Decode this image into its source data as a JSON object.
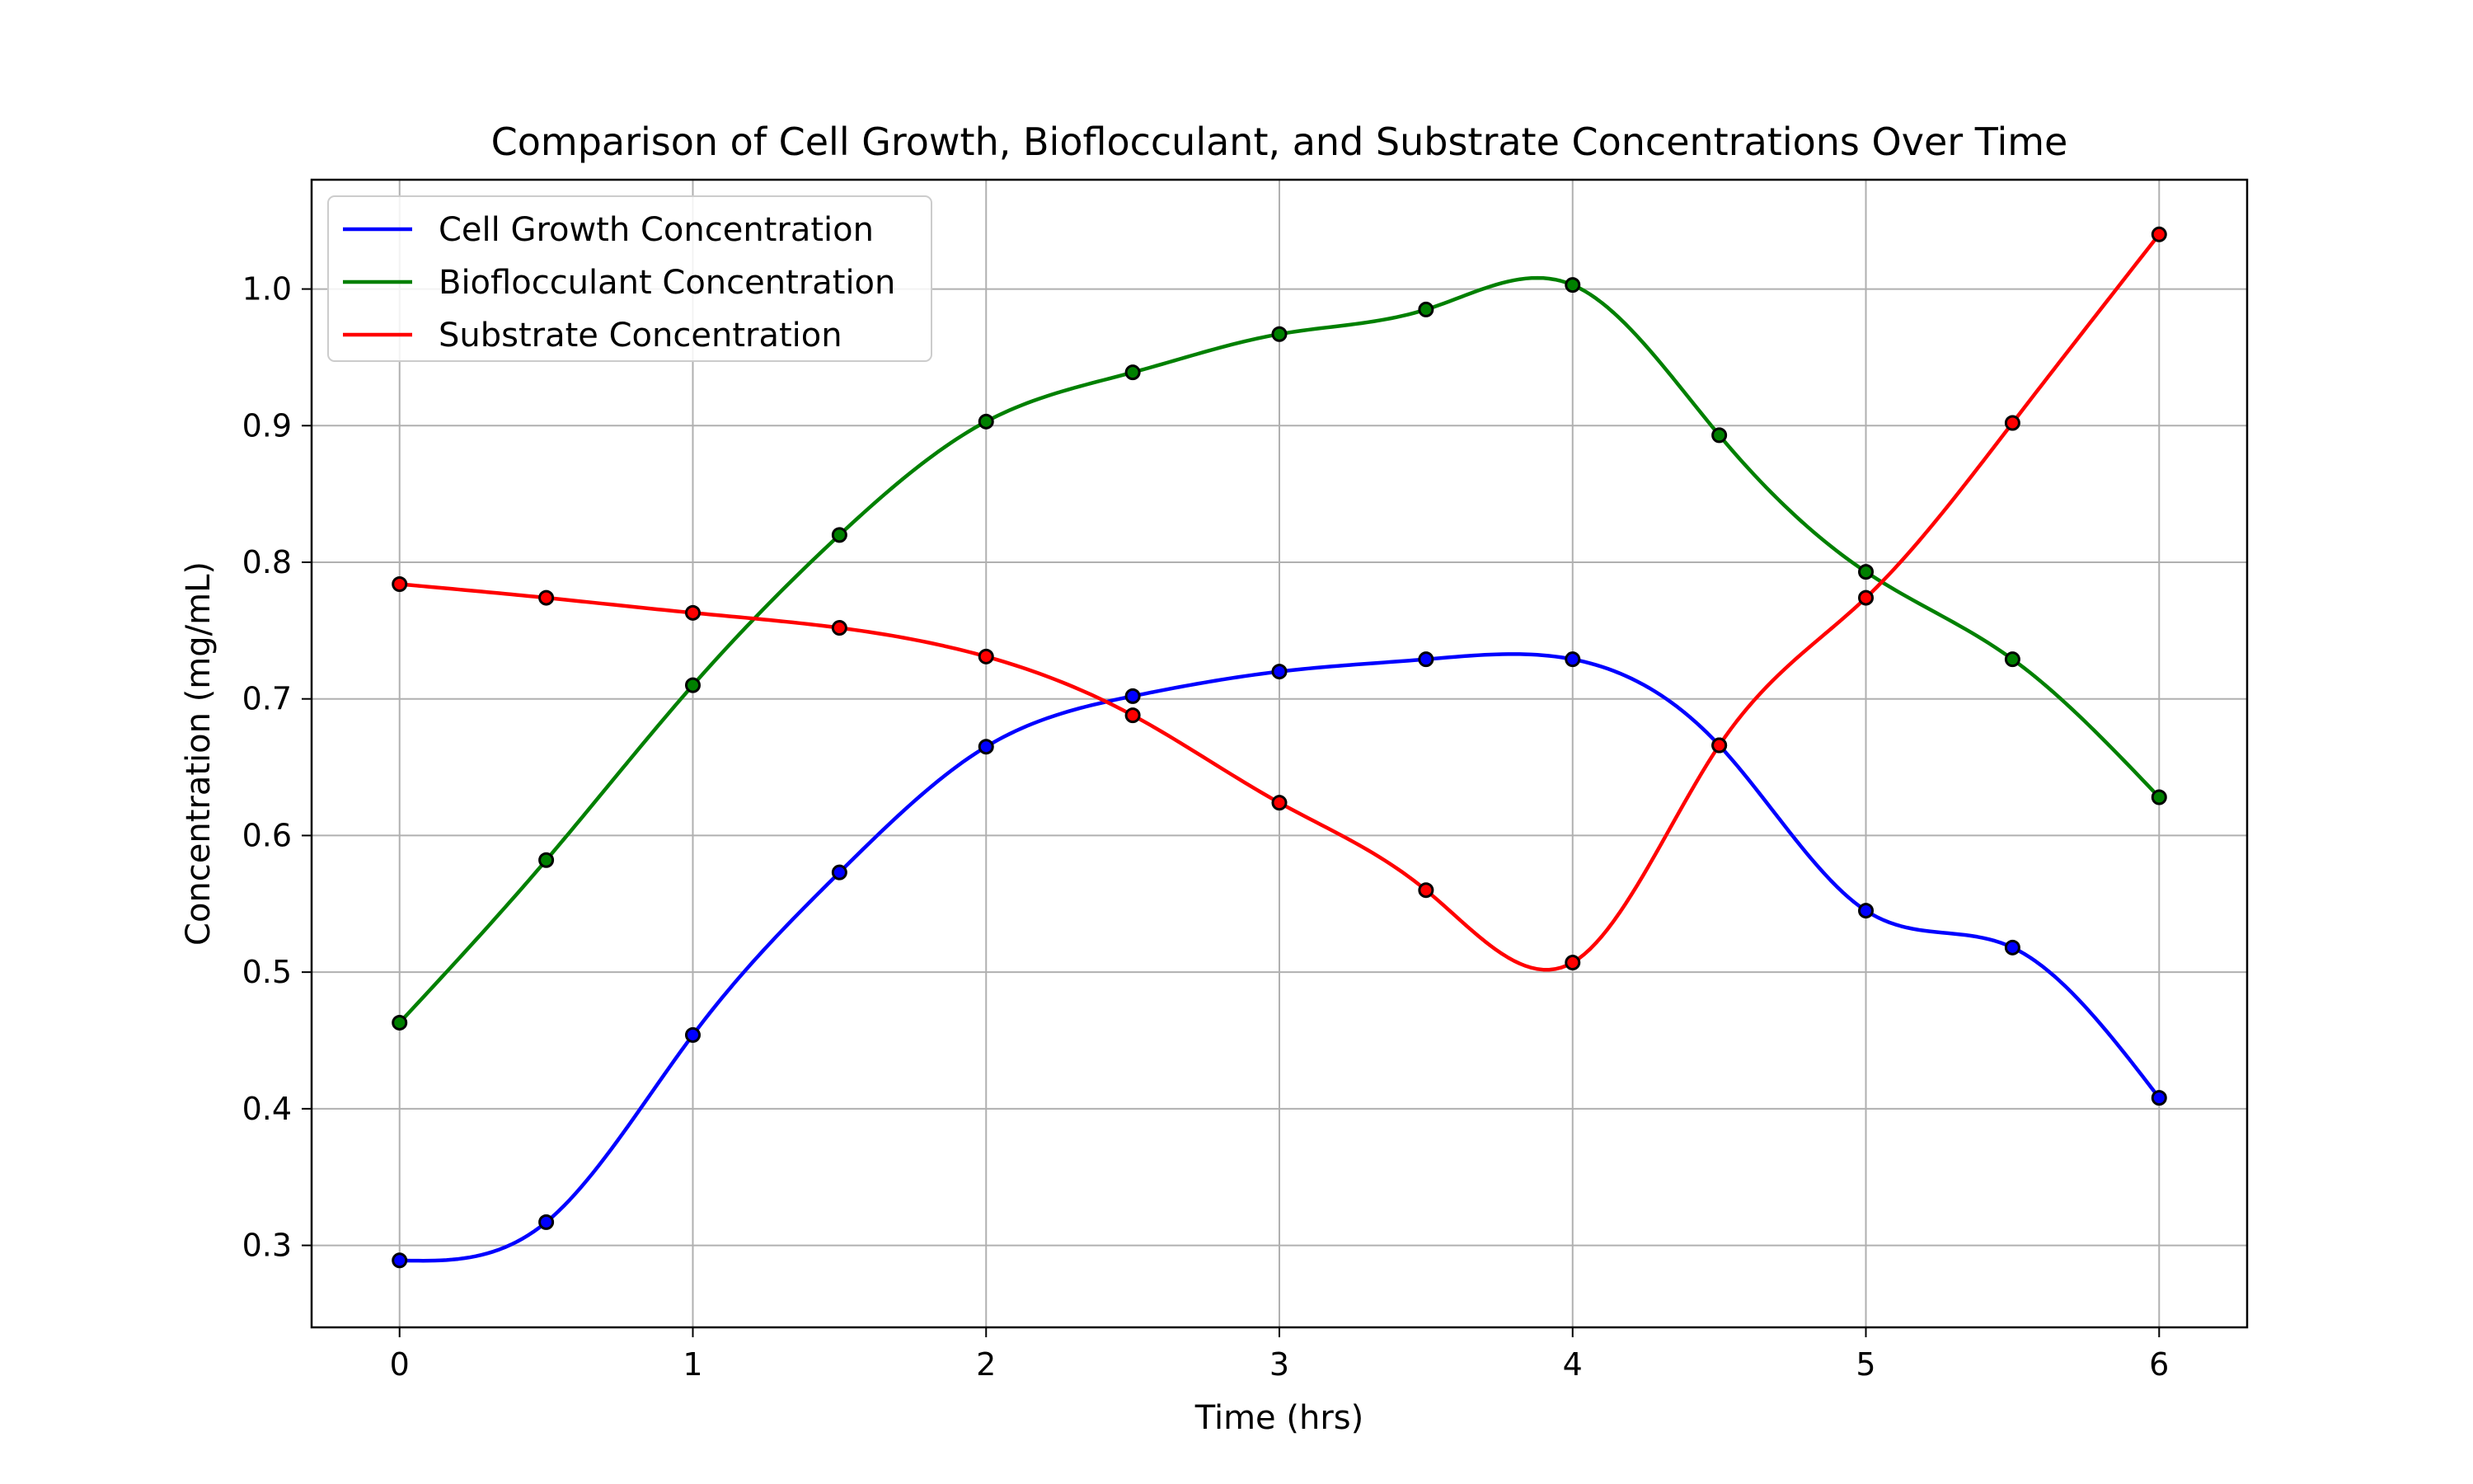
{
  "chart_data": {
    "type": "line",
    "title": "Comparison of Cell Growth, Bioflocculant, and Substrate Concentrations Over Time",
    "xlabel": "Time (hrs)",
    "ylabel": "Concentration (mg/mL)",
    "xlim": [
      -0.3,
      6.3
    ],
    "ylim": [
      0.24,
      1.08
    ],
    "xticks": [
      0,
      1,
      2,
      3,
      4,
      5,
      6
    ],
    "yticks": [
      0.3,
      0.4,
      0.5,
      0.6,
      0.7,
      0.8,
      0.9,
      1.0
    ],
    "ytick_labels": [
      "0.3",
      "0.4",
      "0.5",
      "0.6",
      "0.7",
      "0.8",
      "0.9",
      "1.0"
    ],
    "grid": true,
    "legend_position": "top-left",
    "x": [
      0,
      0.5,
      1,
      1.5,
      2,
      2.5,
      3,
      3.5,
      4,
      4.5,
      5,
      5.5,
      6
    ],
    "series": [
      {
        "name": "Cell Growth Concentration",
        "color": "#0000ff",
        "values": [
          0.289,
          0.317,
          0.454,
          0.573,
          0.665,
          0.702,
          0.72,
          0.729,
          0.729,
          0.666,
          0.545,
          0.518,
          0.408
        ]
      },
      {
        "name": "Bioflocculant Concentration",
        "color": "#008000",
        "values": [
          0.463,
          0.582,
          0.71,
          0.82,
          0.903,
          0.939,
          0.967,
          0.985,
          1.003,
          0.893,
          0.793,
          0.729,
          0.628
        ]
      },
      {
        "name": "Substrate Concentration",
        "color": "#ff0000",
        "values": [
          0.784,
          0.774,
          0.763,
          0.752,
          0.731,
          0.688,
          0.624,
          0.56,
          0.507,
          0.666,
          0.774,
          0.902,
          1.04
        ]
      }
    ],
    "marker_color": "#000000"
  }
}
